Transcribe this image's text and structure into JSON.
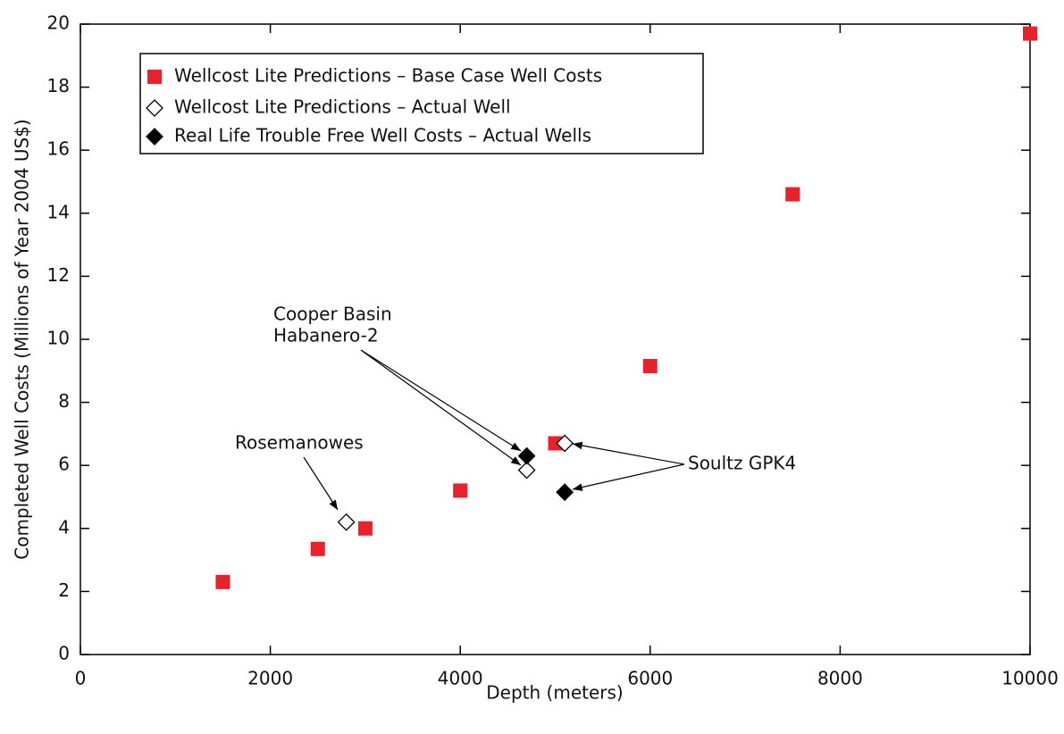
{
  "chart_data": {
    "type": "scatter",
    "xlabel": "Depth (meters)",
    "ylabel": "Completed Well Costs (Millions of Year 2004 US$)",
    "xlim": [
      0,
      10000
    ],
    "xticks": [
      0,
      2000,
      4000,
      6000,
      8000,
      10000
    ],
    "ylim": [
      0,
      20
    ],
    "yticks": [
      0,
      2,
      4,
      6,
      8,
      10,
      12,
      14,
      16,
      18,
      20
    ],
    "legend": "upper left",
    "series": [
      {
        "name": "Wellcost Lite Predictions – Base Case Well Costs",
        "color": "#e8212a",
        "marker": "square",
        "x": [
          1500,
          2500,
          3000,
          4000,
          5000,
          6000,
          7500,
          10000
        ],
        "values": [
          2.3,
          3.35,
          4.0,
          5.2,
          6.7,
          9.15,
          14.6,
          19.7
        ]
      },
      {
        "name": "Wellcost Lite Predictions – Actual Well",
        "color": "#000000",
        "marker": "diamond-open",
        "x": [
          2800,
          4700,
          5100
        ],
        "values": [
          4.2,
          5.85,
          6.7
        ]
      },
      {
        "name": "Real Life Trouble Free Well Costs – Actual Wells",
        "color": "#000000",
        "marker": "diamond",
        "x": [
          4700,
          5100
        ],
        "values": [
          6.3,
          5.15
        ]
      }
    ],
    "annotations": [
      "Cooper Basin",
      "Habanero-2",
      "Rosemanowes",
      "Soultz GPK4"
    ]
  }
}
